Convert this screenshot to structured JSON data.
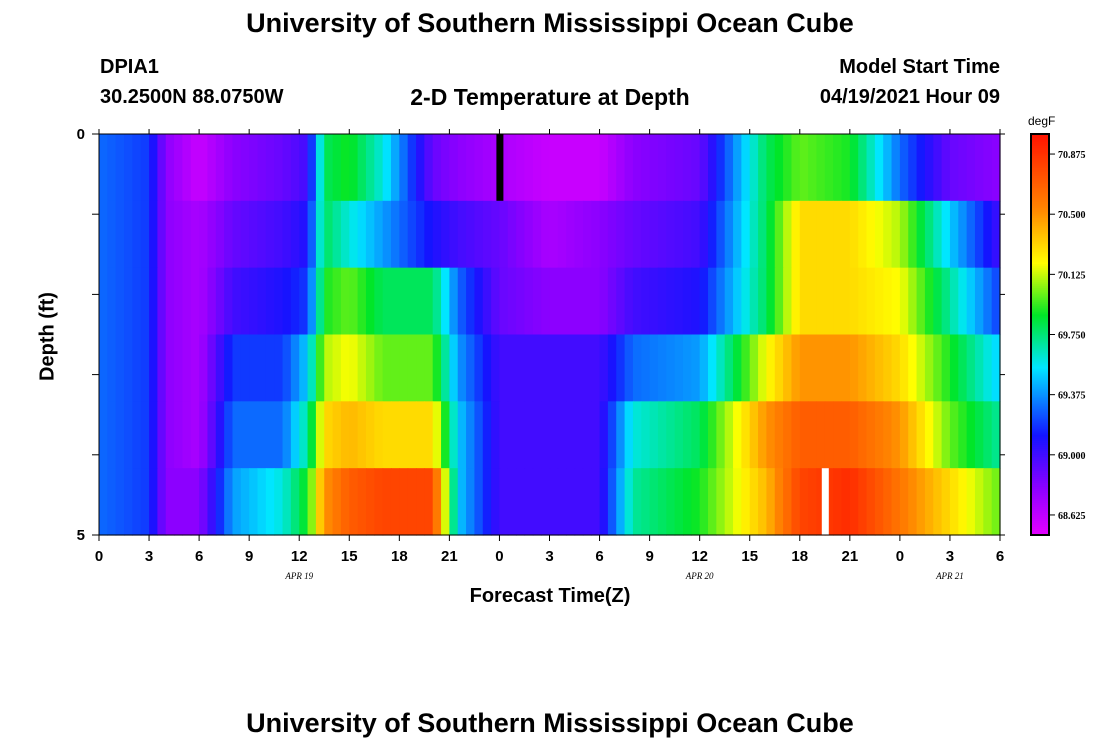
{
  "header": {
    "title": "University of Southern Mississippi Ocean Cube",
    "station_id": "DPIA1",
    "station_coords": "30.2500N  88.0750W",
    "plot_title": "2-D Temperature at Depth",
    "model_label": "Model Start Time",
    "model_time": "04/19/2021 Hour 09"
  },
  "footer": {
    "title": "University of Southern Mississippi Ocean Cube"
  },
  "colorbar": {
    "unit": "degF",
    "ticks": [
      "70.875",
      "70.500",
      "70.125",
      "69.750",
      "69.375",
      "69.000",
      "68.625"
    ],
    "min": 68.5,
    "max": 71.0
  },
  "chart_data": {
    "type": "heatmap",
    "title": "2-D Temperature at Depth",
    "xlabel": "Forecast Time(Z)",
    "ylabel": "Depth (ft)",
    "x_tick_labels": [
      "0",
      "3",
      "6",
      "9",
      "12",
      "15",
      "18",
      "21",
      "0",
      "3",
      "6",
      "9",
      "12",
      "15",
      "18",
      "21",
      "0",
      "3",
      "6"
    ],
    "date_labels": [
      "APR 19",
      "APR 20",
      "APR 21"
    ],
    "y_tick_labels": [
      "0",
      "5"
    ],
    "ylim": [
      0,
      5
    ],
    "hours_span": 54,
    "depth_layers": [
      0,
      1,
      2,
      3,
      4,
      5
    ],
    "markers": [
      {
        "hour": 24,
        "depth_layer": 0,
        "color": "#000000"
      },
      {
        "hour": 43.5,
        "depth_layer": 5,
        "color": "#ffffff"
      }
    ],
    "temperature_series": [
      {
        "depth": "layer 0",
        "hours": [
          0,
          3,
          4,
          6,
          8,
          11,
          12.5,
          13.5,
          15,
          17,
          20,
          21.5,
          24,
          27,
          30,
          32,
          36,
          40,
          42,
          45,
          48,
          51,
          54
        ],
        "values": [
          69.3,
          69.2,
          68.8,
          68.6,
          68.8,
          68.9,
          69.0,
          69.8,
          69.9,
          69.6,
          68.9,
          68.8,
          68.7,
          68.6,
          68.6,
          68.8,
          68.9,
          69.8,
          70.0,
          69.9,
          69.3,
          68.9,
          68.8
        ]
      },
      {
        "depth": "layer 1",
        "hours": [
          0,
          3,
          4,
          6,
          8,
          11,
          12.5,
          13.5,
          15,
          17,
          20,
          21.5,
          24,
          27,
          30,
          32,
          36,
          40,
          42,
          45,
          48,
          51,
          54
        ],
        "values": [
          69.3,
          69.2,
          68.8,
          68.7,
          68.9,
          69.0,
          69.1,
          69.8,
          69.6,
          69.4,
          69.1,
          69.0,
          68.9,
          68.7,
          68.8,
          68.9,
          69.0,
          69.8,
          70.3,
          70.3,
          70.1,
          69.5,
          69.0
        ]
      },
      {
        "depth": "layer 2",
        "hours": [
          0,
          3,
          4,
          6,
          8,
          11,
          12.5,
          13.5,
          15,
          17,
          20,
          21.5,
          24,
          27,
          30,
          32,
          36,
          40,
          42,
          45,
          48,
          51,
          54
        ],
        "values": [
          69.3,
          69.2,
          68.8,
          68.7,
          69.0,
          69.1,
          69.2,
          69.9,
          70.0,
          69.8,
          69.8,
          69.3,
          68.9,
          68.8,
          68.8,
          69.0,
          69.1,
          69.8,
          70.3,
          70.3,
          70.2,
          69.7,
          69.2
        ]
      },
      {
        "depth": "layer 3",
        "hours": [
          0,
          3,
          4,
          6,
          8,
          11,
          12.5,
          13.5,
          15,
          17,
          20,
          21.5,
          24,
          27,
          30,
          32,
          36,
          40,
          42,
          45,
          48,
          51,
          54
        ],
        "values": [
          69.3,
          69.2,
          68.8,
          68.7,
          69.2,
          69.2,
          69.5,
          70.1,
          70.2,
          70.0,
          70.0,
          69.4,
          69.0,
          69.0,
          69.0,
          69.3,
          69.4,
          70.2,
          70.5,
          70.5,
          70.3,
          69.9,
          69.5
        ]
      },
      {
        "depth": "layer 4",
        "hours": [
          0,
          3,
          4,
          6,
          8,
          11,
          12.5,
          13.5,
          15,
          17,
          20,
          21.5,
          24,
          27,
          30,
          32,
          36,
          40,
          42,
          45,
          48,
          51,
          54
        ],
        "values": [
          69.3,
          69.2,
          68.8,
          68.7,
          69.3,
          69.3,
          69.7,
          70.3,
          70.4,
          70.3,
          70.3,
          69.5,
          69.0,
          69.0,
          69.0,
          69.6,
          69.8,
          70.5,
          70.7,
          70.7,
          70.5,
          70.0,
          69.7
        ]
      },
      {
        "depth": "layer 5",
        "hours": [
          0,
          3,
          4,
          6,
          8,
          11,
          12.5,
          13.5,
          15,
          17,
          20,
          21.5,
          24,
          27,
          30,
          32,
          36,
          40,
          42,
          45,
          48,
          51,
          54
        ],
        "values": [
          69.3,
          69.2,
          68.8,
          68.8,
          69.4,
          69.6,
          69.9,
          70.5,
          70.7,
          70.8,
          70.8,
          69.5,
          69.0,
          69.0,
          69.0,
          69.7,
          69.9,
          70.4,
          70.8,
          70.9,
          70.6,
          70.3,
          70.0
        ]
      }
    ]
  }
}
